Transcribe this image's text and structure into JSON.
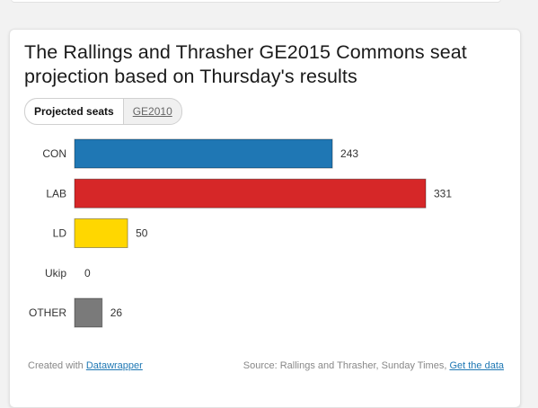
{
  "chart_data": {
    "type": "bar",
    "orientation": "horizontal",
    "title": "The Rallings and Thrasher GE2015 Commons seat projection based on Thursday's results",
    "categories": [
      "CON",
      "LAB",
      "LD",
      "Ukip",
      "OTHER"
    ],
    "values": [
      243,
      331,
      50,
      0,
      26
    ],
    "colors": [
      "#1f77b4",
      "#d62728",
      "#ffd700",
      "#cccccc",
      "#7a7a7a"
    ],
    "xlim": [
      0,
      331
    ],
    "grid": false,
    "legend": "none"
  },
  "toggle": {
    "active_label": "Projected seats",
    "inactive_label": "GE2010"
  },
  "footer": {
    "created_prefix": "Created with",
    "created_link": "Datawrapper",
    "source_text": "Source: Rallings and Thrasher, Sunday Times,",
    "source_link": "Get the data"
  }
}
